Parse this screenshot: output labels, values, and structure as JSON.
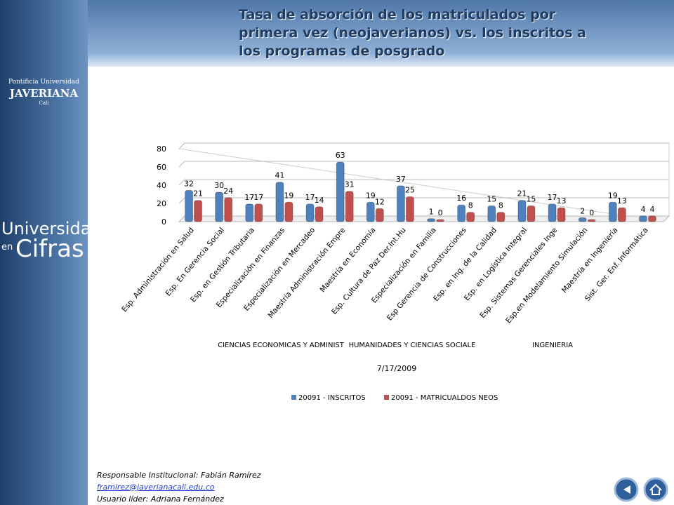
{
  "header": {
    "title": "Tasa de absorción de los  matriculados por primera vez  (neojaverianos) vs.  los inscritos a los programas de posgrado"
  },
  "sidebar": {
    "logo_line1": "Pontificia Universidad",
    "logo_line2": "JAVERIANA",
    "logo_line3": "Cali",
    "brand_line1": "Universidad",
    "brand_line2": "en",
    "brand_line3": "Cifras"
  },
  "footer": {
    "responsible": "Responsable Institucional: Fabián Ramírez",
    "email": "framirez@javerianacali.edu.co",
    "leader": "Usuario líder: Adriana Fernández"
  },
  "chart_data": {
    "type": "bar",
    "xlabel": "7/17/2009",
    "group_labels": [
      "CIENCIAS ECONOMICAS Y ADMINIST",
      "HUMANIDADES Y CIENCIAS SOCIALE",
      "INGENIERIA"
    ],
    "categories": [
      "Esp. Administración en Salud",
      "Esp. En  Gerencia Social",
      "Esp. en Gestión Tributaria",
      "Especialización en Finanzas",
      "Especialización en Mercadeo",
      "Maestría  Administración Empre",
      "Maestría en Economía",
      "Esp. Cultura de Paz Der.Int.Hu",
      "Especialización en Familia",
      "Esp Gerencia de Construcciones",
      "Esp. en Ing. de la Calidad",
      "Esp. en Logística Integral",
      "Esp. Sistemas Gerenciales Inge",
      "Esp.en Modelamiento Simulación",
      "Maestría en Ingeniería",
      "Sist. Ger.  Enf. Informática"
    ],
    "series": [
      {
        "name": "20091 - INSCRITOS",
        "color": "#4f81bd",
        "values": [
          32,
          30,
          17,
          41,
          17,
          63,
          19,
          37,
          1,
          16,
          15,
          21,
          17,
          2,
          19,
          4
        ]
      },
      {
        "name": "20091 - MATRICUALDOS NEOS",
        "color": "#c0504d",
        "values": [
          21,
          24,
          17,
          19,
          14,
          31,
          12,
          25,
          0,
          8,
          8,
          15,
          13,
          0,
          13,
          4
        ]
      }
    ],
    "ylim": [
      0,
      80
    ],
    "yticks": [
      0,
      20,
      40,
      60,
      80
    ],
    "grid": true
  }
}
